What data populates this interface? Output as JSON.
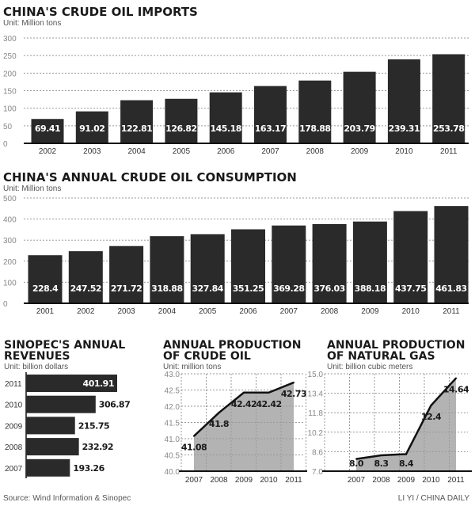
{
  "chart_data": [
    {
      "type": "bar",
      "title": "CHINA'S CRUDE OIL IMPORTS",
      "unit": "Unit: Million tons",
      "categories": [
        "2002",
        "2003",
        "2004",
        "2005",
        "2006",
        "2007",
        "2008",
        "2009",
        "2010",
        "2011"
      ],
      "values": [
        69.41,
        91.02,
        122.81,
        126.82,
        145.18,
        163.17,
        178.88,
        203.79,
        239.31,
        253.78
      ],
      "labels": [
        "69.41",
        "91.02",
        "122.81",
        "126.82",
        "145.18",
        "163.17",
        "178.88",
        "203.79",
        "239.31",
        "253.78"
      ],
      "ylim": [
        0,
        300
      ],
      "yticks": [
        "0",
        "50",
        "100",
        "150",
        "200",
        "250",
        "300"
      ],
      "grid": true,
      "bar_color": "#2b2a2a"
    },
    {
      "type": "bar",
      "title": "CHINA'S ANNUAL CRUDE OIL CONSUMPTION",
      "unit": "Unit: Million tons",
      "categories": [
        "2001",
        "2002",
        "2003",
        "2004",
        "2005",
        "2006",
        "2007",
        "2008",
        "2009",
        "2010",
        "2011"
      ],
      "values": [
        228.4,
        247.52,
        271.72,
        318.88,
        327.84,
        351.25,
        369.28,
        376.03,
        388.18,
        437.75,
        461.83
      ],
      "labels": [
        "228.4",
        "247.52",
        "271.72",
        "318.88",
        "327.84",
        "351.25",
        "369.28",
        "376.03",
        "388.18",
        "437.75",
        "461.83"
      ],
      "ylim": [
        0,
        500
      ],
      "yticks": [
        "0",
        "100",
        "200",
        "300",
        "400",
        "500"
      ],
      "grid": true,
      "bar_color": "#2b2a2a"
    },
    {
      "type": "bar",
      "orientation": "horizontal",
      "title": [
        "SINOPEC'S ANNUAL",
        "REVENUES"
      ],
      "unit": "Unit: billion dollars",
      "categories": [
        "2011",
        "2010",
        "2009",
        "2008",
        "2007"
      ],
      "values": [
        401.91,
        306.87,
        215.75,
        232.92,
        193.26
      ],
      "labels": [
        "401.91",
        "306.87",
        "215.75",
        "232.92",
        "193.26"
      ],
      "bar_color": "#2b2a2a"
    },
    {
      "type": "area",
      "title": [
        "ANNUAL PRODUCTION",
        "OF CRUDE OIL"
      ],
      "unit": "Unit: million tons",
      "categories": [
        "2007",
        "2008",
        "2009",
        "2010",
        "2011"
      ],
      "values": [
        41.08,
        41.8,
        42.42,
        42.42,
        42.73
      ],
      "labels": [
        "41.08",
        "41.8",
        "42.42",
        "42.42",
        "42.73"
      ],
      "ylim": [
        40.0,
        43.0
      ],
      "yticks": [
        "40.0",
        "40.5",
        "41.0",
        "41.5",
        "42.0",
        "42.5",
        "43.0"
      ],
      "grid": true,
      "fill_color": "#b3b3b3"
    },
    {
      "type": "area",
      "title": [
        "ANNUAL PRODUCTION",
        "OF NATURAL GAS"
      ],
      "unit": "Unit: billion cubic meters",
      "categories": [
        "2007",
        "2008",
        "2009",
        "2010",
        "2011"
      ],
      "values": [
        8.0,
        8.3,
        8.4,
        12.4,
        14.64
      ],
      "labels": [
        "8.0",
        "8.3",
        "8.4",
        "12.4",
        "14.64"
      ],
      "ylim": [
        7.0,
        15.0
      ],
      "yticks": [
        "7.0",
        "8.6",
        "10.2",
        "11.8",
        "13.4",
        "15.0"
      ],
      "grid": true,
      "fill_color": "#b3b3b3"
    }
  ],
  "footer": {
    "source": "Source: Wind Information & Sinopec",
    "credit": "LI YI / CHINA DAILY"
  }
}
